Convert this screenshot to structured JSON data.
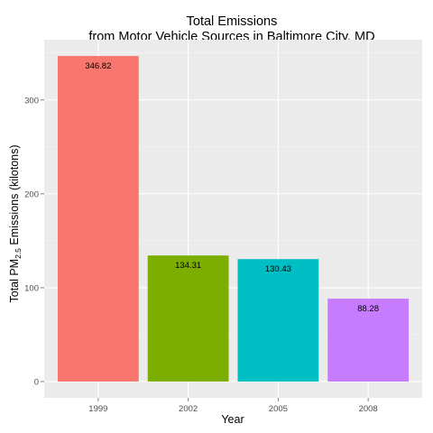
{
  "chart_data": {
    "type": "bar",
    "title": [
      "Total Emissions",
      "from Motor Vehicle Sources in Baltimore City, MD"
    ],
    "xlabel": "Year",
    "ylabel": {
      "prefix": "Total PM",
      "subscript": "2.5",
      "suffix": " Emissions (kilotons)"
    },
    "categories": [
      "1999",
      "2002",
      "2005",
      "2008"
    ],
    "values": [
      346.82,
      134.31,
      130.43,
      88.28
    ],
    "labels": [
      "346.82",
      "134.31",
      "130.43",
      "88.28"
    ],
    "colors": [
      "#F8766D",
      "#7CAE00",
      "#00BFC4",
      "#C77CFF"
    ],
    "yticks": [
      0,
      100,
      200,
      300
    ],
    "ylim": [
      -17.34,
      364.16
    ],
    "grid": true,
    "legend": "none",
    "panel_background": "#EBEBEB"
  }
}
